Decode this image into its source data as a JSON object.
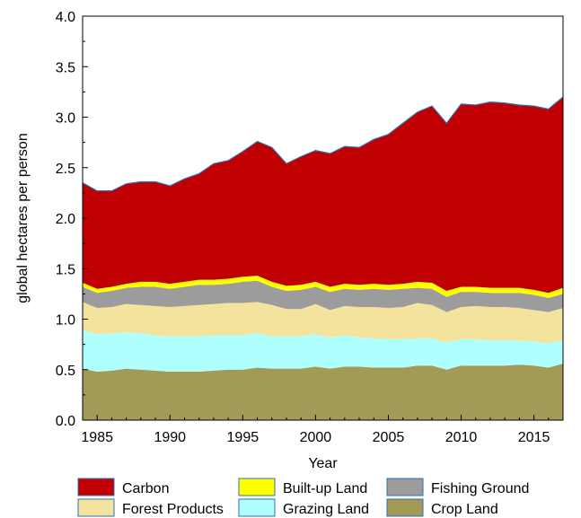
{
  "chart_data": {
    "type": "area",
    "stacked": true,
    "xlabel": "Year",
    "ylabel": "global hectares per person",
    "xlim": [
      1984,
      2017
    ],
    "ylim": [
      0.0,
      4.0
    ],
    "x_ticks": [
      1985,
      1990,
      1995,
      2000,
      2005,
      2010,
      2015
    ],
    "y_ticks": [
      0.0,
      0.5,
      1.0,
      1.5,
      2.0,
      2.5,
      3.0,
      3.5,
      4.0
    ],
    "x_tick_labels": [
      "1985",
      "1990",
      "1995",
      "2000",
      "2005",
      "2010",
      "2015"
    ],
    "y_tick_labels": [
      "0.0",
      "0.5",
      "1.0",
      "1.5",
      "2.0",
      "2.5",
      "3.0",
      "3.5",
      "4.0"
    ],
    "grid": false,
    "legend_position": "bottom",
    "x": [
      1984,
      1985,
      1986,
      1987,
      1988,
      1989,
      1990,
      1991,
      1992,
      1993,
      1994,
      1995,
      1996,
      1997,
      1998,
      1999,
      2000,
      2001,
      2002,
      2003,
      2004,
      2005,
      2006,
      2007,
      2008,
      2009,
      2010,
      2011,
      2012,
      2013,
      2014,
      2015,
      2016,
      2017
    ],
    "series": [
      {
        "name": "Crop Land",
        "color": "#a39a58",
        "values": [
          0.51,
          0.48,
          0.49,
          0.51,
          0.5,
          0.49,
          0.48,
          0.48,
          0.48,
          0.49,
          0.5,
          0.5,
          0.52,
          0.51,
          0.51,
          0.51,
          0.53,
          0.51,
          0.53,
          0.53,
          0.52,
          0.52,
          0.52,
          0.54,
          0.54,
          0.5,
          0.54,
          0.54,
          0.54,
          0.54,
          0.55,
          0.54,
          0.52,
          0.56
        ]
      },
      {
        "name": "Grazing Land",
        "color": "#b0ffff",
        "values": [
          0.38,
          0.37,
          0.37,
          0.36,
          0.36,
          0.35,
          0.35,
          0.35,
          0.35,
          0.35,
          0.34,
          0.34,
          0.34,
          0.32,
          0.32,
          0.32,
          0.32,
          0.31,
          0.31,
          0.29,
          0.29,
          0.28,
          0.28,
          0.27,
          0.27,
          0.27,
          0.26,
          0.26,
          0.25,
          0.25,
          0.24,
          0.24,
          0.24,
          0.23
        ]
      },
      {
        "name": "Forest Products",
        "color": "#f3e39c",
        "values": [
          0.28,
          0.26,
          0.26,
          0.28,
          0.28,
          0.29,
          0.29,
          0.3,
          0.31,
          0.31,
          0.32,
          0.32,
          0.31,
          0.31,
          0.27,
          0.27,
          0.3,
          0.27,
          0.29,
          0.3,
          0.31,
          0.31,
          0.32,
          0.35,
          0.33,
          0.3,
          0.32,
          0.33,
          0.33,
          0.33,
          0.32,
          0.31,
          0.31,
          0.32
        ]
      },
      {
        "name": "Fishing Ground",
        "color": "#9c9c9c",
        "values": [
          0.15,
          0.15,
          0.16,
          0.16,
          0.18,
          0.19,
          0.18,
          0.19,
          0.2,
          0.19,
          0.19,
          0.21,
          0.21,
          0.18,
          0.18,
          0.19,
          0.17,
          0.18,
          0.17,
          0.17,
          0.18,
          0.18,
          0.18,
          0.15,
          0.16,
          0.15,
          0.15,
          0.14,
          0.14,
          0.14,
          0.15,
          0.15,
          0.14,
          0.14
        ]
      },
      {
        "name": "Built-up Land",
        "color": "#ffff00",
        "values": [
          0.04,
          0.04,
          0.04,
          0.04,
          0.05,
          0.05,
          0.05,
          0.05,
          0.05,
          0.05,
          0.05,
          0.05,
          0.05,
          0.05,
          0.05,
          0.05,
          0.05,
          0.05,
          0.05,
          0.05,
          0.05,
          0.05,
          0.05,
          0.06,
          0.06,
          0.06,
          0.05,
          0.05,
          0.05,
          0.05,
          0.05,
          0.05,
          0.05,
          0.06
        ]
      },
      {
        "name": "Carbon",
        "color": "#c00000",
        "values": [
          0.99,
          0.97,
          0.95,
          0.99,
          0.99,
          0.99,
          0.97,
          1.02,
          1.05,
          1.15,
          1.17,
          1.24,
          1.33,
          1.33,
          1.21,
          1.27,
          1.3,
          1.32,
          1.36,
          1.36,
          1.43,
          1.49,
          1.59,
          1.68,
          1.75,
          1.66,
          1.81,
          1.8,
          1.84,
          1.83,
          1.81,
          1.82,
          1.82,
          1.89
        ]
      }
    ],
    "legend_order": [
      "Carbon",
      "Built-up Land",
      "Fishing Ground",
      "Forest Products",
      "Grazing Land",
      "Crop Land"
    ],
    "edge_color": "#2e6fb8"
  }
}
